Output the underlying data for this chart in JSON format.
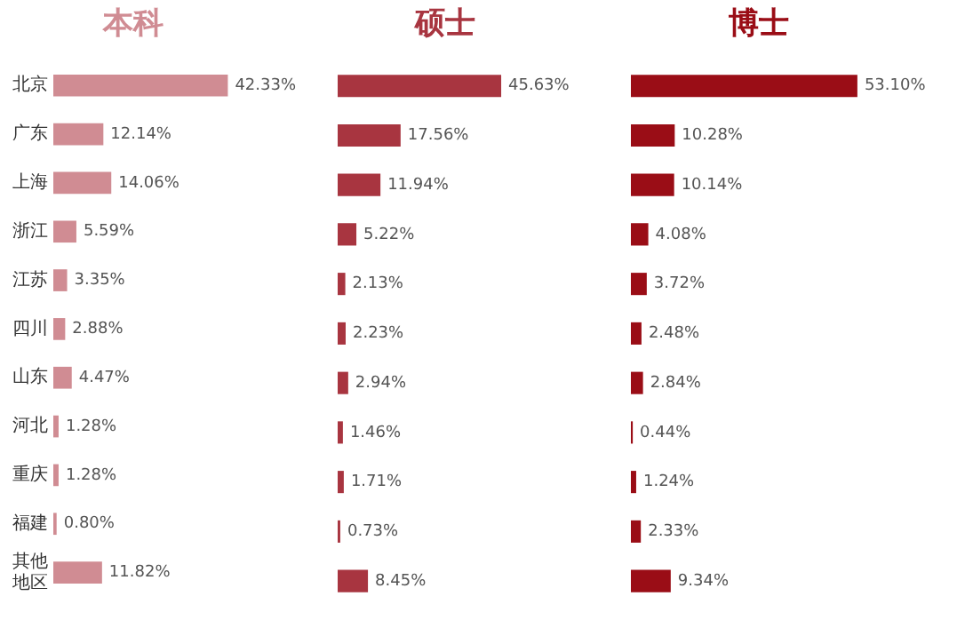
{
  "chart_data": [
    {
      "type": "bar",
      "orientation": "horizontal",
      "title": "本科",
      "categories": [
        "北京",
        "广东",
        "上海",
        "浙江",
        "江苏",
        "四川",
        "山东",
        "河北",
        "重庆",
        "福建",
        "其他地区"
      ],
      "tick_labels": "y",
      "grid": false,
      "legend": false,
      "series": [
        {
          "color": "#d08c93",
          "values": [
            42.33,
            12.14,
            14.06,
            5.59,
            3.35,
            2.88,
            4.47,
            1.28,
            1.28,
            0.8,
            11.82
          ],
          "value_labels": [
            "42.33%",
            "12.14%",
            "14.06%",
            "5.59%",
            "3.35%",
            "2.88%",
            "4.47%",
            "1.28%",
            "1.28%",
            "0.80%",
            "11.82%"
          ]
        }
      ]
    },
    {
      "type": "bar",
      "orientation": "horizontal",
      "title": "硕士",
      "categories": [
        "北京",
        "广东",
        "上海",
        "浙江",
        "江苏",
        "四川",
        "山东",
        "河北",
        "重庆",
        "福建",
        "其他地区"
      ],
      "tick_labels": false,
      "grid": false,
      "legend": false,
      "series": [
        {
          "color": "#a83540",
          "values": [
            45.63,
            17.56,
            11.94,
            5.22,
            2.13,
            2.23,
            2.94,
            1.46,
            1.71,
            0.73,
            8.45
          ],
          "value_labels": [
            "45.63%",
            "17.56%",
            "11.94%",
            "5.22%",
            "2.13%",
            "2.23%",
            "2.94%",
            "1.46%",
            "1.71%",
            "0.73%",
            "8.45%"
          ]
        }
      ]
    },
    {
      "type": "bar",
      "orientation": "horizontal",
      "title": "博士",
      "categories": [
        "北京",
        "广东",
        "上海",
        "浙江",
        "江苏",
        "四川",
        "山东",
        "河北",
        "重庆",
        "福建",
        "其他地区"
      ],
      "tick_labels": false,
      "grid": false,
      "legend": false,
      "series": [
        {
          "color": "#9a0d16",
          "values": [
            53.1,
            10.28,
            10.14,
            4.08,
            3.72,
            2.48,
            2.84,
            0.44,
            1.24,
            2.33,
            9.34
          ],
          "value_labels": [
            "53.10%",
            "10.28%",
            "10.14%",
            "4.08%",
            "3.72%",
            "2.48%",
            "2.84%",
            "0.44%",
            "1.24%",
            "2.33%",
            "9.34%"
          ]
        }
      ]
    }
  ]
}
